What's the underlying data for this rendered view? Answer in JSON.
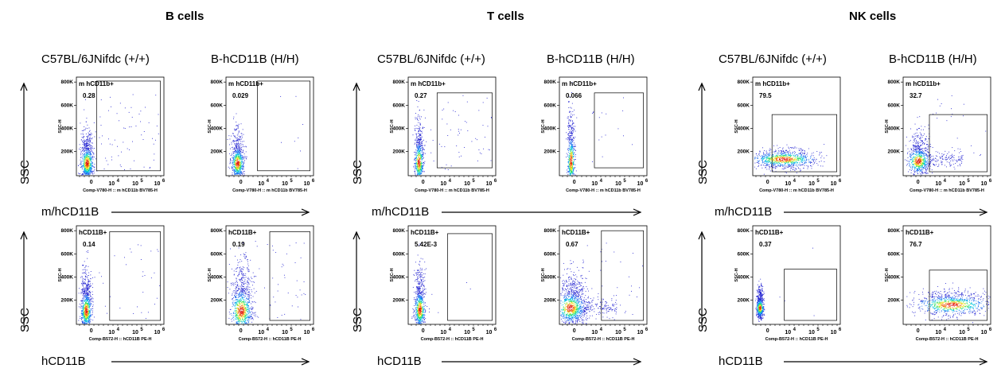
{
  "groups": [
    {
      "title": "B cells",
      "col_heads": [
        "C57BL/6JNifdc (+/+)",
        "B-hCD11B (H/H)"
      ],
      "row_x_labels": [
        "m/hCD11B",
        "hCD11B"
      ]
    },
    {
      "title": "T cells",
      "col_heads": [
        "C57BL/6JNifdc (+/+)",
        "B-hCD11B (H/H)"
      ],
      "row_x_labels": [
        "m/hCD11B",
        "hCD11B"
      ]
    },
    {
      "title": "NK cells",
      "col_heads": [
        "C57BL/6JNifdc (+/+)",
        "B-hCD11B (H/H)"
      ],
      "row_x_labels": [
        "m/hCD11B",
        "hCD11B"
      ]
    }
  ],
  "ssc_label": "SSC",
  "y_axis_label": "SSC-H",
  "y_tick_labels": [
    "200K",
    "400K",
    "600K",
    "800K"
  ],
  "x_tick_labels": [
    "0",
    "10",
    "4",
    "10",
    "5",
    "10",
    "6"
  ],
  "x_axis_titles": [
    "Comp-V780-H :: m hCD11b BV785-H",
    "Comp-B572-H :: hCD11B PE-H"
  ],
  "chart_data": {
    "type": "scatter",
    "description_note": "Flow cytometry dot plots; gate percentages per panel",
    "y_range": [
      0,
      850000
    ],
    "panels": [
      {
        "group": "B cells",
        "sample": "C57BL/6JNifdc (+/+)",
        "row": 1,
        "gate": "m hCD11b+",
        "value": "0.28"
      },
      {
        "group": "B cells",
        "sample": "B-hCD11B (H/H)",
        "row": 1,
        "gate": "m hCD11b+",
        "value": "0.029"
      },
      {
        "group": "T cells",
        "sample": "C57BL/6JNifdc (+/+)",
        "row": 1,
        "gate": "m hCD11b+",
        "value": "0.27"
      },
      {
        "group": "T cells",
        "sample": "B-hCD11B (H/H)",
        "row": 1,
        "gate": "m hCD11b+",
        "value": "0.066"
      },
      {
        "group": "NK cells",
        "sample": "C57BL/6JNifdc (+/+)",
        "row": 1,
        "gate": "m hCD11b+",
        "value": "79.5"
      },
      {
        "group": "NK cells",
        "sample": "B-hCD11B (H/H)",
        "row": 1,
        "gate": "m hCD11b+",
        "value": "32.7"
      },
      {
        "group": "B cells",
        "sample": "C57BL/6JNifdc (+/+)",
        "row": 2,
        "gate": "hCD11B+",
        "value": "0.14"
      },
      {
        "group": "B cells",
        "sample": "B-hCD11B (H/H)",
        "row": 2,
        "gate": "hCD11B+",
        "value": "0.19"
      },
      {
        "group": "T cells",
        "sample": "C57BL/6JNifdc (+/+)",
        "row": 2,
        "gate": "hCD11B+",
        "value": "5.42E-3"
      },
      {
        "group": "T cells",
        "sample": "B-hCD11B (H/H)",
        "row": 2,
        "gate": "hCD11B+",
        "value": "0.67"
      },
      {
        "group": "NK cells",
        "sample": "C57BL/6JNifdc (+/+)",
        "row": 2,
        "gate": "hCD11B+",
        "value": "0.37"
      },
      {
        "group": "NK cells",
        "sample": "B-hCD11B (H/H)",
        "row": 2,
        "gate": "hCD11B+",
        "value": "76.7"
      }
    ]
  }
}
